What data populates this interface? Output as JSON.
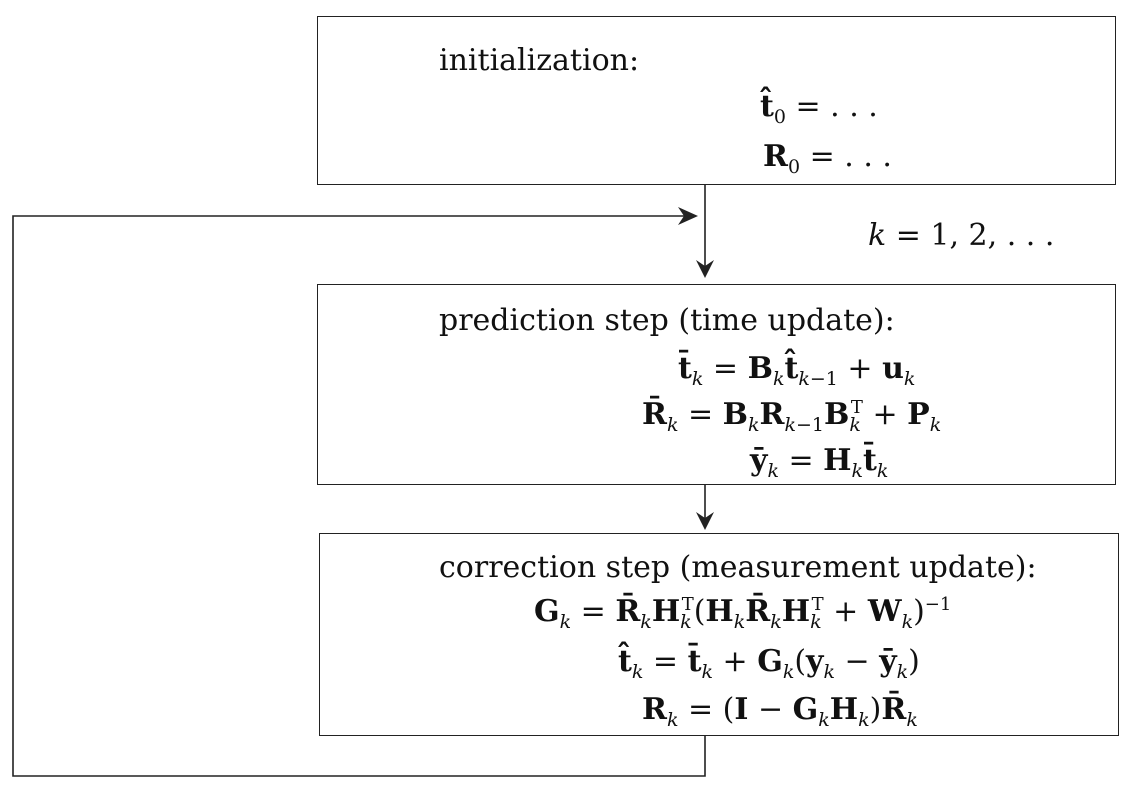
{
  "init": {
    "heading": "initialization:",
    "eq1": "t̂₀ = …",
    "eq2": "R₀ = …"
  },
  "loop": {
    "label": "k = 1, 2, …"
  },
  "prediction": {
    "heading": "prediction step (time update):",
    "eq1": "t̄ₖ = Bₖt̂ₖ₋₁ + uₖ",
    "eq2": "R̄ₖ = BₖRₖ₋₁Bₖᵀ + Pₖ",
    "eq3": "ȳₖ = Hₖt̄ₖ"
  },
  "correction": {
    "heading": "correction step (measurement update):",
    "eq1": "Gₖ = R̄ₖHₖᵀ(HₖR̄ₖHₖᵀ + Wₖ)⁻¹",
    "eq2": "t̂ₖ = t̄ₖ + Gₖ(yₖ − ȳₖ)",
    "eq3": "Rₖ = (I − GₖHₖ)R̄ₖ"
  }
}
